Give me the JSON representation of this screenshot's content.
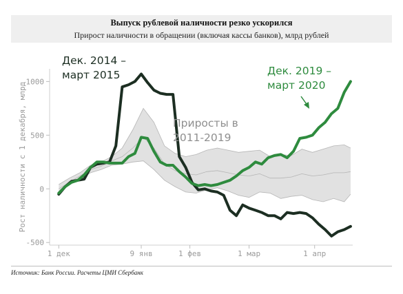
{
  "header": {
    "title": "Выпуск рублевой наличности резко ускорился",
    "subtitle": "Прирост наличности в обращении (включая кассы банков), млрд рублей"
  },
  "source": "Источник: Банк России. Расчеты ЦМИ Сбербанк",
  "colors": {
    "dark_series": "#1c2e22",
    "green_series": "#2e8b3e",
    "band_fill": "#dcdcdc",
    "band_line": "#b5b5b5",
    "axis_text": "#9a9a9a"
  },
  "chart_data": {
    "type": "line",
    "title": "Выпуск рублевой наличности резко ускорился",
    "subtitle": "Прирост наличности в обращении (включая кассы банков), млрд рублей",
    "ylabel": "Рост наличности с 1 декабря, млрд",
    "xlabel": "",
    "ylim": [
      -550,
      1150
    ],
    "xlim": [
      -5,
      140
    ],
    "yticks": [
      -500,
      0,
      500,
      1000
    ],
    "ytick_labels": [
      "-500",
      "0",
      "500",
      "1000"
    ],
    "xticks": [
      0,
      39,
      62,
      90,
      121
    ],
    "xtick_labels": [
      "1 дек",
      "9 янв",
      "1 фев",
      "1 мар",
      "1 апр"
    ],
    "grid": false,
    "legend": "none",
    "annotations": [
      {
        "text_lines": [
          "Дек. 2014 –",
          "март 2015"
        ],
        "color": "#1c2e22"
      },
      {
        "text_lines": [
          "Приросты в",
          "2011-2019"
        ],
        "color": "#8f8f8f"
      },
      {
        "text_lines": [
          "Дек. 2019 –",
          "март 2020"
        ],
        "color": "#2e8b3e"
      }
    ],
    "series": [
      {
        "name": "Дек. 2014 – март 2015",
        "color": "#1c2e22",
        "x": [
          0,
          3,
          6,
          9,
          12,
          15,
          18,
          21,
          24,
          27,
          30,
          33,
          36,
          39,
          42,
          45,
          48,
          51,
          54,
          57,
          60,
          63,
          66,
          69,
          72,
          75,
          78,
          81,
          84,
          87,
          90,
          93,
          96,
          99,
          102,
          105,
          108,
          111,
          114,
          117,
          120,
          123,
          126,
          129,
          132,
          135,
          138
        ],
        "y": [
          -50,
          20,
          70,
          80,
          90,
          200,
          230,
          240,
          250,
          400,
          950,
          970,
          1000,
          1070,
          990,
          920,
          890,
          880,
          880,
          300,
          200,
          60,
          -10,
          0,
          -20,
          -30,
          -60,
          -200,
          -250,
          -150,
          -180,
          -200,
          -220,
          -250,
          -250,
          -280,
          -220,
          -230,
          -220,
          -230,
          -270,
          -330,
          -380,
          -440,
          -400,
          -380,
          -350
        ]
      },
      {
        "name": "Дек. 2019 – март 2020",
        "color": "#2e8b3e",
        "x": [
          0,
          3,
          6,
          9,
          12,
          15,
          18,
          21,
          24,
          27,
          30,
          33,
          36,
          39,
          42,
          45,
          48,
          51,
          54,
          57,
          60,
          63,
          66,
          69,
          72,
          75,
          78,
          81,
          84,
          87,
          90,
          93,
          96,
          99,
          102,
          105,
          108,
          111,
          114,
          117,
          120,
          123,
          126,
          129,
          132,
          135,
          138
        ],
        "y": [
          -40,
          20,
          60,
          80,
          130,
          200,
          250,
          250,
          240,
          240,
          240,
          300,
          330,
          480,
          470,
          350,
          250,
          220,
          220,
          160,
          110,
          50,
          30,
          40,
          30,
          40,
          60,
          80,
          120,
          170,
          200,
          250,
          230,
          290,
          310,
          320,
          290,
          350,
          470,
          480,
          500,
          570,
          620,
          700,
          750,
          900,
          1000
        ]
      }
    ],
    "band": {
      "name": "Приросты в 2011-2019",
      "x": [
        0,
        5,
        10,
        15,
        20,
        25,
        30,
        35,
        40,
        45,
        50,
        55,
        60,
        65,
        70,
        75,
        80,
        85,
        90,
        95,
        100,
        105,
        110,
        115,
        120,
        125,
        130,
        135,
        138
      ],
      "upper": [
        40,
        100,
        150,
        220,
        250,
        300,
        380,
        550,
        750,
        620,
        400,
        330,
        300,
        320,
        360,
        380,
        360,
        340,
        350,
        360,
        300,
        320,
        310,
        370,
        340,
        370,
        400,
        410,
        380
      ],
      "lower": [
        -30,
        40,
        90,
        150,
        180,
        220,
        230,
        250,
        260,
        180,
        80,
        20,
        -30,
        -40,
        -10,
        10,
        -20,
        -60,
        -80,
        -30,
        -40,
        -90,
        -70,
        -60,
        -100,
        -120,
        -90,
        -120,
        -50
      ],
      "median": [
        0,
        60,
        120,
        180,
        210,
        260,
        300,
        380,
        480,
        380,
        230,
        170,
        140,
        130,
        160,
        170,
        150,
        130,
        120,
        140,
        100,
        100,
        110,
        140,
        120,
        130,
        150,
        150,
        160
      ]
    }
  }
}
